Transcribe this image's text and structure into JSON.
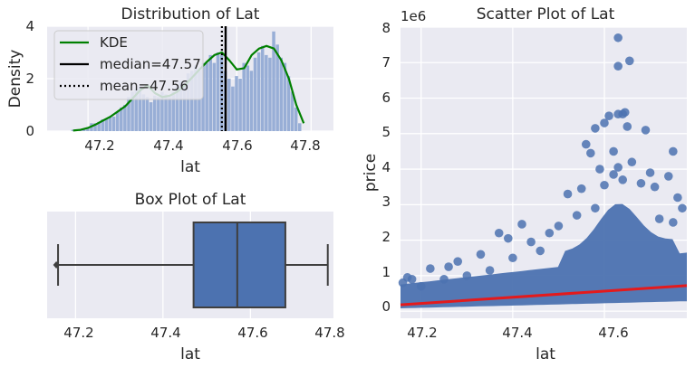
{
  "chart_data": [
    {
      "type": "histogram",
      "title": "Distribution of Lat",
      "xlabel": "lat",
      "ylabel": "Density",
      "xlim": [
        47.09,
        47.86
      ],
      "ylim": [
        0,
        4
      ],
      "xticks": [
        "47.2",
        "47.4",
        "47.6",
        "47.8"
      ],
      "yticks": [
        "0",
        "2",
        "4"
      ],
      "bins_x": [
        47.16,
        47.17,
        47.18,
        47.19,
        47.2,
        47.21,
        47.22,
        47.23,
        47.24,
        47.25,
        47.26,
        47.27,
        47.28,
        47.29,
        47.3,
        47.31,
        47.32,
        47.33,
        47.34,
        47.35,
        47.36,
        47.37,
        47.38,
        47.39,
        47.4,
        47.41,
        47.42,
        47.43,
        47.44,
        47.45,
        47.46,
        47.47,
        47.48,
        47.49,
        47.5,
        47.51,
        47.52,
        47.53,
        47.54,
        47.55,
        47.56,
        47.57,
        47.58,
        47.59,
        47.6,
        47.61,
        47.62,
        47.63,
        47.64,
        47.65,
        47.66,
        47.67,
        47.68,
        47.69,
        47.7,
        47.71,
        47.72,
        47.73,
        47.74,
        47.75,
        47.76,
        47.77
      ],
      "bins_density": [
        0.05,
        0.05,
        0.05,
        0.1,
        0.1,
        0.3,
        0.3,
        0.35,
        0.45,
        0.45,
        0.55,
        0.55,
        0.75,
        0.9,
        1.0,
        1.3,
        1.5,
        1.6,
        1.7,
        1.4,
        1.3,
        1.1,
        1.35,
        1.3,
        1.5,
        1.4,
        1.3,
        1.5,
        1.7,
        1.9,
        1.7,
        2.2,
        2.3,
        2.5,
        2.3,
        2.6,
        2.6,
        2.9,
        2.6,
        3.0,
        2.9,
        2.3,
        2.0,
        1.7,
        2.1,
        2.0,
        2.6,
        2.5,
        2.3,
        2.8,
        3.0,
        3.25,
        2.9,
        2.8,
        3.8,
        3.3,
        2.8,
        2.6,
        2.1,
        1.5,
        0.9,
        0.3
      ],
      "kde_x": [
        47.16,
        47.18,
        47.2,
        47.22,
        47.24,
        47.26,
        47.28,
        47.3,
        47.32,
        47.34,
        47.36,
        47.38,
        47.4,
        47.42,
        47.44,
        47.46,
        47.48,
        47.5,
        47.52,
        47.54,
        47.56,
        47.58,
        47.6,
        47.62,
        47.64,
        47.66,
        47.68,
        47.7,
        47.72,
        47.74,
        47.76,
        47.78
      ],
      "kde_y": [
        0.02,
        0.05,
        0.12,
        0.25,
        0.4,
        0.55,
        0.75,
        0.95,
        1.25,
        1.55,
        1.75,
        1.45,
        1.3,
        1.35,
        1.5,
        1.75,
        2.05,
        2.35,
        2.65,
        2.9,
        3.0,
        2.7,
        2.35,
        2.4,
        2.9,
        3.15,
        3.25,
        3.15,
        2.7,
        2.0,
        1.0,
        0.3
      ],
      "median": 47.57,
      "mean": 47.56,
      "legend": [
        {
          "label": "KDE",
          "style": "solid",
          "color": "#008000"
        },
        {
          "label": "median=47.57",
          "style": "solid",
          "color": "#000000"
        },
        {
          "label": "mean=47.56",
          "style": "dotted",
          "color": "#000000"
        }
      ],
      "legend_position": "top-left"
    },
    {
      "type": "box",
      "title": "Box Plot of Lat",
      "xlabel": "lat",
      "xlim": [
        47.135,
        47.79
      ],
      "xticks": [
        "47.2",
        "47.4",
        "47.6",
        "47.8"
      ],
      "whisker_low": 47.16,
      "q1": 47.47,
      "median": 47.57,
      "q3": 47.68,
      "whisker_high": 47.777,
      "outliers": [
        47.156
      ],
      "color": "#4c72b0"
    },
    {
      "type": "scatter",
      "title": "Scatter Plot of Lat",
      "xlabel": "lat",
      "ylabel": "price",
      "scale_label": "1e6",
      "xlim": [
        47.155,
        47.78
      ],
      "ylim": [
        -0.2,
        8.0
      ],
      "xticks": [
        "47.2",
        "47.4",
        "47.6"
      ],
      "yticks": [
        "0",
        "1",
        "2",
        "3",
        "4",
        "5",
        "6",
        "7",
        "8"
      ],
      "points": [
        [
          47.63,
          7.7
        ],
        [
          47.655,
          7.05
        ],
        [
          47.63,
          6.9
        ],
        [
          47.645,
          5.6
        ],
        [
          47.61,
          5.5
        ],
        [
          47.63,
          5.55
        ],
        [
          47.64,
          5.55
        ],
        [
          47.65,
          5.2
        ],
        [
          47.6,
          5.3
        ],
        [
          47.58,
          5.15
        ],
        [
          47.69,
          5.1
        ],
        [
          47.75,
          4.5
        ],
        [
          47.56,
          4.7
        ],
        [
          47.62,
          4.5
        ],
        [
          47.57,
          4.45
        ],
        [
          47.66,
          4.2
        ],
        [
          47.59,
          4.0
        ],
        [
          47.63,
          4.05
        ],
        [
          47.7,
          3.9
        ],
        [
          47.74,
          3.8
        ],
        [
          47.62,
          3.85
        ],
        [
          47.55,
          3.45
        ],
        [
          47.52,
          3.3
        ],
        [
          47.64,
          3.7
        ],
        [
          47.68,
          3.6
        ],
        [
          47.71,
          3.5
        ],
        [
          47.6,
          3.55
        ],
        [
          47.42,
          2.45
        ],
        [
          47.37,
          2.2
        ],
        [
          47.39,
          2.05
        ],
        [
          47.44,
          1.95
        ],
        [
          47.48,
          2.2
        ],
        [
          47.5,
          2.4
        ],
        [
          47.33,
          1.6
        ],
        [
          47.28,
          1.4
        ],
        [
          47.26,
          1.25
        ],
        [
          47.22,
          1.2
        ],
        [
          47.18,
          0.9
        ],
        [
          47.16,
          0.8
        ],
        [
          47.17,
          0.95
        ],
        [
          47.76,
          3.2
        ],
        [
          47.77,
          2.9
        ],
        [
          47.75,
          2.5
        ],
        [
          47.72,
          2.6
        ],
        [
          47.58,
          2.9
        ],
        [
          47.54,
          2.7
        ],
        [
          47.46,
          1.7
        ],
        [
          47.4,
          1.5
        ],
        [
          47.35,
          1.15
        ],
        [
          47.3,
          1.0
        ],
        [
          47.25,
          0.9
        ],
        [
          47.2,
          0.7
        ]
      ],
      "trend": {
        "x": [
          47.155,
          47.78
        ],
        "y": [
          0.18,
          0.72
        ],
        "color": "#e41a1c"
      },
      "point_color": "#4c72b0"
    }
  ]
}
